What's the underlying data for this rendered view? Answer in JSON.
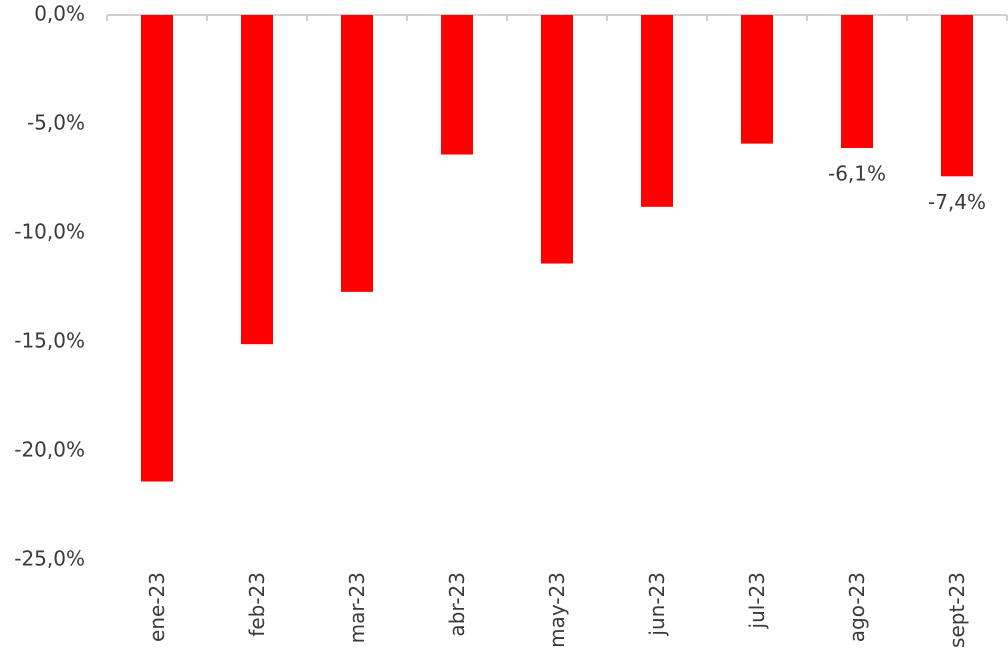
{
  "chart_data": {
    "type": "bar",
    "categories": [
      "ene-23",
      "feb-23",
      "mar-23",
      "abr-23",
      "may-23",
      "jun-23",
      "jul-23",
      "ago-23",
      "sept-23"
    ],
    "values": [
      -21.4,
      -15.1,
      -12.7,
      -6.4,
      -11.4,
      -8.8,
      -5.9,
      -6.1,
      -7.4
    ],
    "value_labels": [
      null,
      null,
      null,
      null,
      null,
      null,
      null,
      "-6,1%",
      "-7,4%"
    ],
    "color": "#ff0000",
    "ylim": [
      -25,
      0
    ],
    "yticks": [
      {
        "value": 0,
        "label": "0,0%"
      },
      {
        "value": -5,
        "label": "-5,0%"
      },
      {
        "value": -10,
        "label": "-10,0%"
      },
      {
        "value": -15,
        "label": "-15,0%"
      },
      {
        "value": -20,
        "label": "-20,0%"
      },
      {
        "value": -25,
        "label": "-25,0%"
      }
    ],
    "grid": false
  }
}
